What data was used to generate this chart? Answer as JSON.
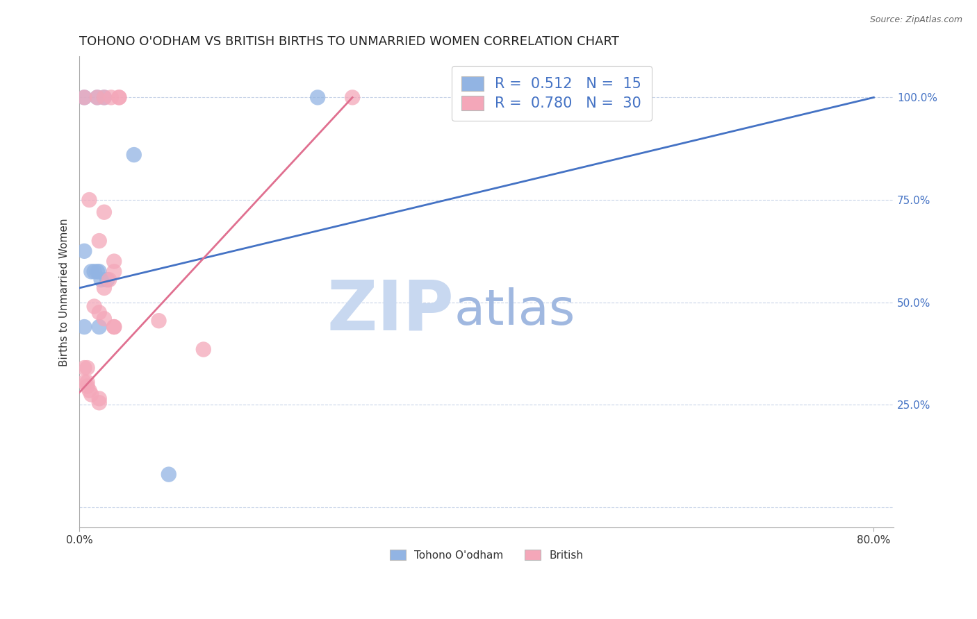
{
  "title": "TOHONO O'ODHAM VS BRITISH BIRTHS TO UNMARRIED WOMEN CORRELATION CHART",
  "source": "Source: ZipAtlas.com",
  "ylabel": "Births to Unmarried Women",
  "xlim": [
    0.0,
    0.82
  ],
  "ylim": [
    -0.05,
    1.1
  ],
  "yticks": [
    0.0,
    0.25,
    0.5,
    0.75,
    1.0
  ],
  "ytick_labels": [
    "",
    "25.0%",
    "50.0%",
    "75.0%",
    "100.0%"
  ],
  "watermark_zip": "ZIP",
  "watermark_atlas": "atlas",
  "legend_text_1": "R =  0.512   N =  15",
  "legend_text_2": "R =  0.780   N =  30",
  "blue_color": "#92b4e3",
  "pink_color": "#f4a7b9",
  "blue_line_color": "#4472c4",
  "pink_line_color": "#e07090",
  "blue_scatter": [
    [
      0.005,
      1.0
    ],
    [
      0.018,
      1.0
    ],
    [
      0.025,
      1.0
    ],
    [
      0.055,
      0.86
    ],
    [
      0.005,
      0.625
    ],
    [
      0.012,
      0.575
    ],
    [
      0.015,
      0.575
    ],
    [
      0.018,
      0.575
    ],
    [
      0.02,
      0.575
    ],
    [
      0.022,
      0.555
    ],
    [
      0.028,
      0.555
    ],
    [
      0.005,
      0.44
    ],
    [
      0.02,
      0.44
    ],
    [
      0.09,
      0.08
    ],
    [
      0.24,
      1.0
    ]
  ],
  "pink_scatter": [
    [
      0.005,
      1.0
    ],
    [
      0.018,
      1.0
    ],
    [
      0.025,
      1.0
    ],
    [
      0.032,
      1.0
    ],
    [
      0.04,
      1.0
    ],
    [
      0.04,
      1.0
    ],
    [
      0.275,
      1.0
    ],
    [
      0.01,
      0.75
    ],
    [
      0.025,
      0.72
    ],
    [
      0.02,
      0.65
    ],
    [
      0.035,
      0.6
    ],
    [
      0.035,
      0.575
    ],
    [
      0.03,
      0.555
    ],
    [
      0.025,
      0.535
    ],
    [
      0.015,
      0.49
    ],
    [
      0.02,
      0.475
    ],
    [
      0.025,
      0.46
    ],
    [
      0.035,
      0.44
    ],
    [
      0.035,
      0.44
    ],
    [
      0.08,
      0.455
    ],
    [
      0.125,
      0.385
    ],
    [
      0.005,
      0.34
    ],
    [
      0.008,
      0.34
    ],
    [
      0.005,
      0.305
    ],
    [
      0.008,
      0.305
    ],
    [
      0.008,
      0.295
    ],
    [
      0.01,
      0.285
    ],
    [
      0.012,
      0.275
    ],
    [
      0.02,
      0.265
    ],
    [
      0.02,
      0.255
    ]
  ],
  "blue_line_x": [
    0.0,
    0.8
  ],
  "blue_line_y": [
    0.535,
    1.0
  ],
  "pink_line_x": [
    0.0,
    0.275
  ],
  "pink_line_y": [
    0.28,
    1.0
  ],
  "background_color": "#ffffff",
  "grid_color": "#c8d4e8",
  "title_fontsize": 13,
  "tick_color": "#4472c4",
  "watermark_color_zip": "#c8d8f0",
  "watermark_color_atlas": "#a0b8e0",
  "legend_fontsize": 15,
  "bottom_legend_1": "Tohono O'odham",
  "bottom_legend_2": "British"
}
